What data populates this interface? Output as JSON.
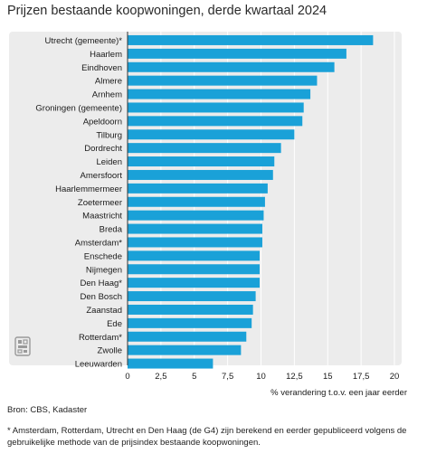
{
  "title": "Prijzen bestaande koopwoningen, derde kwartaal 2024",
  "source": "Bron: CBS, Kadaster",
  "footnote": "* Amsterdam, Rotterdam, Utrecht en Den Haag (de G4) zijn berekend en eerder gepubliceerd volgens de gebruikelijke methode van de prijsindex bestaande koopwoningen.",
  "logo_icon": "cbs-logo-icon",
  "colors": {
    "bar": "#1aa1d8",
    "panel": "#ececec",
    "axis": "#333333",
    "grid": "#ffffff"
  },
  "chart_data": {
    "type": "bar",
    "orientation": "horizontal",
    "title": "Prijzen bestaande koopwoningen, derde kwartaal 2024",
    "xlabel": "% verandering t.o.v. een jaar eerder",
    "ylabel": "",
    "xlim": [
      0,
      20
    ],
    "xticks": [
      0,
      2.5,
      5,
      7.5,
      10,
      12.5,
      15,
      17.5,
      20
    ],
    "xtick_labels": [
      "0",
      "2,5",
      "5",
      "7,5",
      "10",
      "12,5",
      "15",
      "17,5",
      "20"
    ],
    "grid": true,
    "categories": [
      "Utrecht (gemeente)*",
      "Haarlem",
      "Eindhoven",
      "Almere",
      "Arnhem",
      "Groningen (gemeente)",
      "Apeldoorn",
      "Tilburg",
      "Dordrecht",
      "Leiden",
      "Amersfoort",
      "Haarlemmermeer",
      "Zoetermeer",
      "Maastricht",
      "Breda",
      "Amsterdam*",
      "Enschede",
      "Nijmegen",
      "Den Haag*",
      "Den Bosch",
      "Zaanstad",
      "Ede",
      "Rotterdam*",
      "Zwolle",
      "Leeuwarden"
    ],
    "values": [
      18.4,
      16.4,
      15.5,
      14.2,
      13.7,
      13.2,
      13.1,
      12.5,
      11.5,
      11.0,
      10.9,
      10.5,
      10.3,
      10.2,
      10.1,
      10.1,
      9.9,
      9.9,
      9.9,
      9.6,
      9.4,
      9.3,
      8.9,
      8.5,
      6.4
    ]
  }
}
